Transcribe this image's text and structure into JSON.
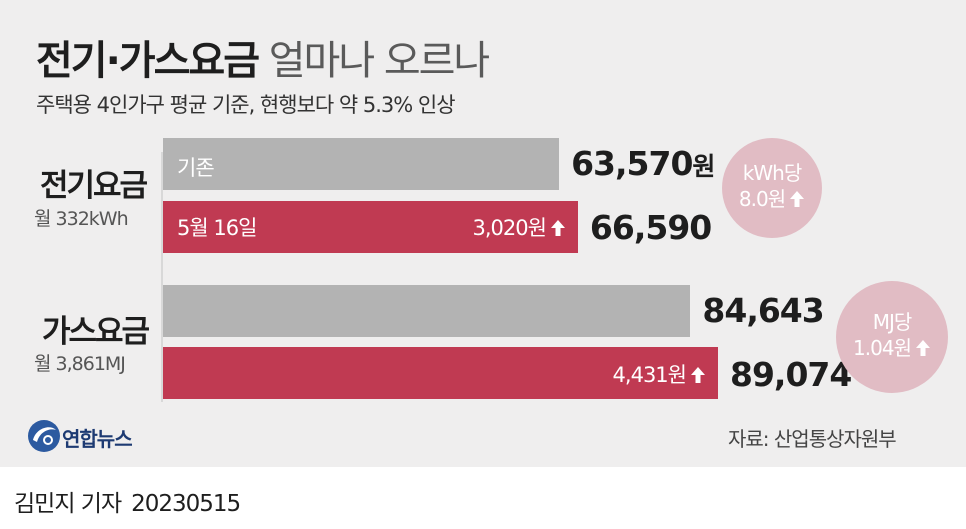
{
  "header": {
    "title_bold": "전기·가스요금",
    "title_light": "얼마나 오르나",
    "subtitle": "주택용 4인가구 평균 기준, 현행보다 약 5.3% 인상"
  },
  "categories": {
    "electric": {
      "name": "전기요금",
      "sub": "월 332kWh"
    },
    "gas": {
      "name": "가스요금",
      "sub": "월 3,861MJ"
    }
  },
  "bars": {
    "electric_old_label": "기존",
    "electric_new_label": "5월 16일",
    "electric_increase": "3,020원",
    "gas_increase": "4,431원"
  },
  "values": {
    "electric_old": "63,570",
    "electric_old_unit": "원",
    "electric_new": "66,590",
    "gas_old": "84,643",
    "gas_new": "89,074"
  },
  "badges": {
    "electric_line1": "kWh당",
    "electric_line2": "8.0원",
    "gas_line1": "MJ당",
    "gas_line2": "1.04원"
  },
  "footer": {
    "logo": "연합뉴스",
    "source": "자료: 산업통상자원부",
    "reporter": "김민지 기자",
    "date": "20230515"
  },
  "colors": {
    "old_bar": "#b3b3b3",
    "new_bar": "#c03a52",
    "badge": "#e1bcc4",
    "background": "#efeeee"
  },
  "chart_data": {
    "type": "bar",
    "orientation": "horizontal",
    "title": "전기·가스요금 얼마나 오르나",
    "subtitle": "주택용 4인가구 평균 기준, 현행보다 약 5.3% 인상",
    "categories": [
      "전기요금",
      "가스요금"
    ],
    "series": [
      {
        "name": "기존",
        "values": [
          63570,
          84643
        ]
      },
      {
        "name": "5월 16일",
        "values": [
          66590,
          89074
        ]
      }
    ],
    "increase": [
      3020,
      4431
    ],
    "per_unit_increase": [
      "kWh당 8.0원",
      "MJ당 1.04원"
    ],
    "xlim": [
      0,
      89074
    ]
  }
}
